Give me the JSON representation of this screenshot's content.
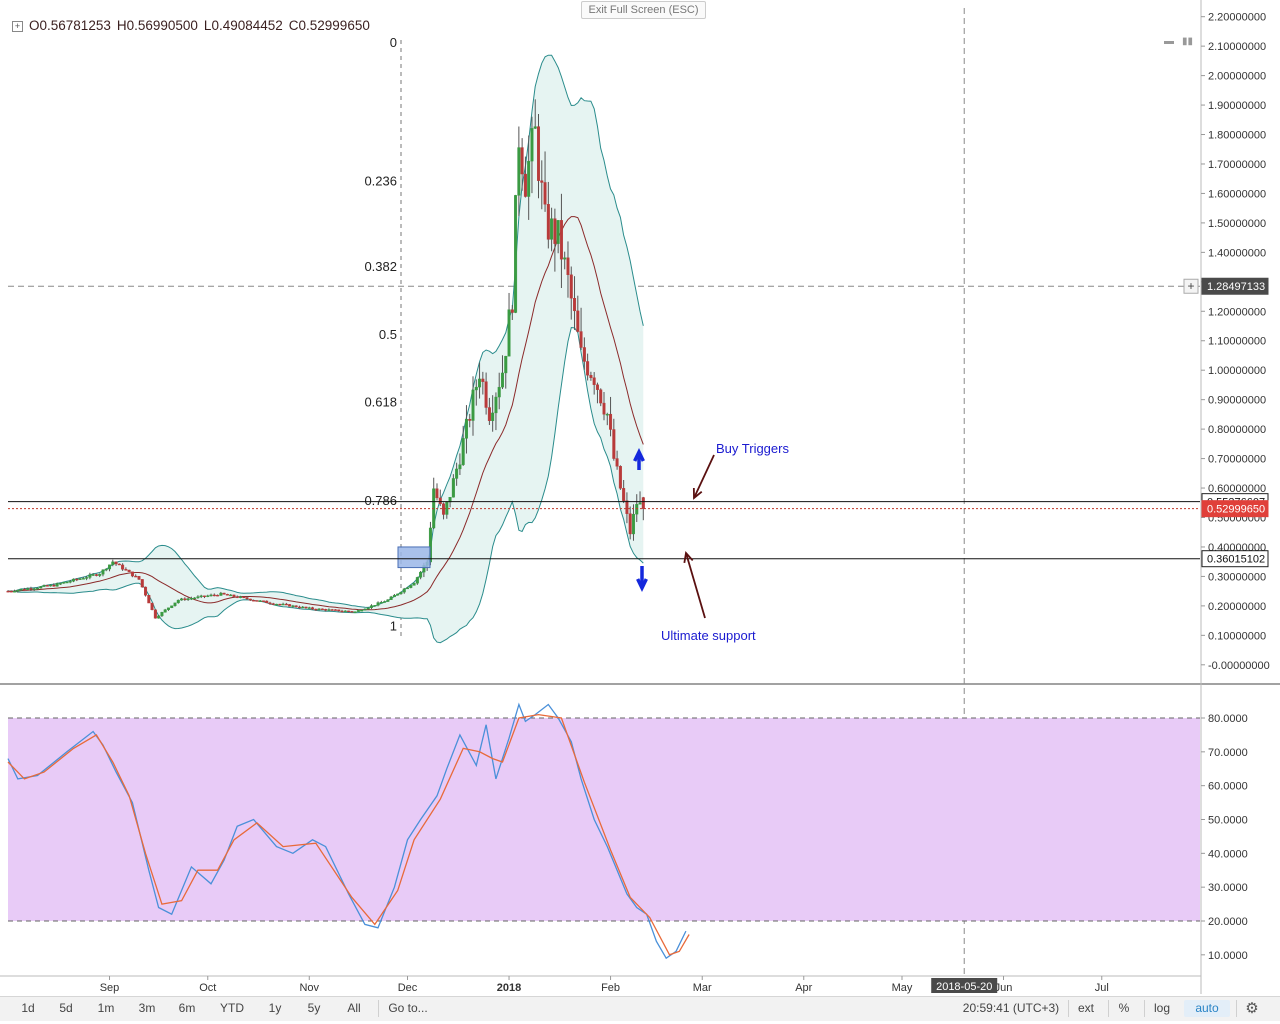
{
  "header": {
    "open_label": "O",
    "open": "0.56781253",
    "high_label": "H",
    "high": "0.56990500",
    "low_label": "L",
    "low": "0.49084452",
    "close_label": "C",
    "close": "0.52999650",
    "exit_fullscreen": "Exit Full Screen (ESC)"
  },
  "price_scale": [
    "2.20000000",
    "2.10000000",
    "2.00000000",
    "1.90000000",
    "1.80000000",
    "1.70000000",
    "1.60000000",
    "1.50000000",
    "1.40000000",
    "1.30000000",
    "1.20000000",
    "1.10000000",
    "1.00000000",
    "0.90000000",
    "0.80000000",
    "0.70000000",
    "0.60000000",
    "0.50000000",
    "0.40000000",
    "0.30000000",
    "0.20000000",
    "0.10000000",
    "-0.00000000"
  ],
  "oscillator_scale": [
    "80.0000",
    "70.0000",
    "60.0000",
    "50.0000",
    "40.0000",
    "30.0000",
    "20.0000",
    "10.0000"
  ],
  "price_tags": [
    {
      "value": 1.28497133,
      "text": "1.28497133",
      "style": "crosshair"
    },
    {
      "value": 0.55376607,
      "text": "0.55376607",
      "style": "line"
    },
    {
      "value": 0.5299965,
      "text": "0.52999650",
      "style": "last"
    },
    {
      "value": 0.36015102,
      "text": "0.36015102",
      "style": "line"
    }
  ],
  "time_axis": [
    "Sep",
    "Oct",
    "Nov",
    "Dec",
    "2018",
    "Feb",
    "Mar",
    "Apr",
    "May",
    "Jun",
    "Jul"
  ],
  "crosshair_date": "2018-05-20",
  "annotations": {
    "buy_triggers": "Buy Triggers",
    "ultimate_support": "Ultimate support"
  },
  "toolbar": {
    "ranges": [
      "1d",
      "5d",
      "1m",
      "3m",
      "6m",
      "YTD",
      "1y",
      "5y",
      "All"
    ],
    "goto": "Go to...",
    "clock": "20:59:41 (UTC+3)",
    "ext": "ext",
    "percent": "%",
    "log": "log",
    "auto": "auto"
  },
  "colors": {
    "up": "#3a9a42",
    "down": "#b83a3a",
    "bollinger": "#2a8c8c",
    "bollinger_fill": "#e6f4f2",
    "basis": "#8b2a2a",
    "stoch_k": "#4a90d9",
    "stoch_d": "#e86a3a",
    "stoch_band": "#e8cbf7",
    "arrow_blue": "#1428dc",
    "arrow_brown": "#5a1010",
    "annotation_text": "#1a1ad0"
  },
  "chart_data": [
    {
      "type": "candlestick",
      "pair_scale": "price",
      "ylim": [
        -0.05,
        2.22
      ],
      "time_range": [
        "2017-08-01",
        "2018-07-31"
      ],
      "last_bar": {
        "open": 0.56781253,
        "high": 0.569905,
        "low": 0.49084452,
        "close": 0.5299965
      },
      "fibonacci": {
        "anchor_top": 2.11,
        "anchor_bottom": 0.13,
        "levels": [
          {
            "ratio": 0,
            "label": "0",
            "price": 2.11
          },
          {
            "ratio": 0.236,
            "label": "0.236",
            "price": 1.64
          },
          {
            "ratio": 0.382,
            "label": "0.382",
            "price": 1.35
          },
          {
            "ratio": 0.5,
            "label": "0.5",
            "price": 1.12
          },
          {
            "ratio": 0.618,
            "label": "0.618",
            "price": 0.89
          },
          {
            "ratio": 0.786,
            "label": "0.786",
            "price": 0.556
          },
          {
            "ratio": 1,
            "label": "1",
            "price": 0.13
          }
        ]
      },
      "horizontal_lines": [
        0.55376607,
        0.36015102
      ],
      "close_path": [
        {
          "date": "2017-08-01",
          "close": 0.25
        },
        {
          "date": "2017-08-15",
          "close": 0.27
        },
        {
          "date": "2017-08-29",
          "close": 0.31
        },
        {
          "date": "2017-09-02",
          "close": 0.35
        },
        {
          "date": "2017-09-10",
          "close": 0.29
        },
        {
          "date": "2017-09-15",
          "close": 0.16
        },
        {
          "date": "2017-09-22",
          "close": 0.22
        },
        {
          "date": "2017-10-05",
          "close": 0.24
        },
        {
          "date": "2017-10-20",
          "close": 0.21
        },
        {
          "date": "2017-11-02",
          "close": 0.19
        },
        {
          "date": "2017-11-15",
          "close": 0.18
        },
        {
          "date": "2017-11-25",
          "close": 0.22
        },
        {
          "date": "2017-12-03",
          "close": 0.28
        },
        {
          "date": "2017-12-07",
          "close": 0.35
        },
        {
          "date": "2017-12-09",
          "close": 0.6
        },
        {
          "date": "2017-12-12",
          "close": 0.5
        },
        {
          "date": "2017-12-15",
          "close": 0.62
        },
        {
          "date": "2017-12-19",
          "close": 0.8
        },
        {
          "date": "2017-12-23",
          "close": 1.0
        },
        {
          "date": "2017-12-26",
          "close": 0.86
        },
        {
          "date": "2017-12-30",
          "close": 1.0
        },
        {
          "date": "2018-01-02",
          "close": 1.25
        },
        {
          "date": "2018-01-04",
          "close": 1.8
        },
        {
          "date": "2018-01-06",
          "close": 1.65
        },
        {
          "date": "2018-01-09",
          "close": 1.8
        },
        {
          "date": "2018-01-12",
          "close": 1.5
        },
        {
          "date": "2018-01-16",
          "close": 1.45
        },
        {
          "date": "2018-01-19",
          "close": 1.3
        },
        {
          "date": "2018-01-23",
          "close": 1.05
        },
        {
          "date": "2018-01-27",
          "close": 0.98
        },
        {
          "date": "2018-01-31",
          "close": 0.85
        },
        {
          "date": "2018-02-02",
          "close": 0.7
        },
        {
          "date": "2018-02-05",
          "close": 0.55
        },
        {
          "date": "2018-02-07",
          "close": 0.45
        },
        {
          "date": "2018-02-09",
          "close": 0.55
        },
        {
          "date": "2018-02-11",
          "close": 0.53
        }
      ]
    },
    {
      "type": "line",
      "pair_scale": "oscillator",
      "ylim": [
        4,
        91
      ],
      "bands": [
        80,
        20
      ],
      "series": [
        {
          "key": "k",
          "points": [
            [
              "2017-08-01",
              68
            ],
            [
              "2017-08-04",
              62
            ],
            [
              "2017-08-10",
              63
            ],
            [
              "2017-08-19",
              70
            ],
            [
              "2017-08-27",
              76
            ],
            [
              "2017-08-30",
              72
            ],
            [
              "2017-09-03",
              64
            ],
            [
              "2017-09-08",
              55
            ],
            [
              "2017-09-13",
              35
            ],
            [
              "2017-09-16",
              24
            ],
            [
              "2017-09-20",
              22
            ],
            [
              "2017-09-26",
              36
            ],
            [
              "2017-10-02",
              31
            ],
            [
              "2017-10-06",
              38
            ],
            [
              "2017-10-10",
              48
            ],
            [
              "2017-10-15",
              50
            ],
            [
              "2017-10-22",
              42
            ],
            [
              "2017-10-27",
              40
            ],
            [
              "2017-11-02",
              44
            ],
            [
              "2017-11-06",
              42
            ],
            [
              "2017-11-13",
              28
            ],
            [
              "2017-11-18",
              19
            ],
            [
              "2017-11-22",
              18
            ],
            [
              "2017-11-27",
              30
            ],
            [
              "2017-12-01",
              44
            ],
            [
              "2017-12-05",
              50
            ],
            [
              "2017-12-10",
              57
            ],
            [
              "2017-12-13",
              65
            ],
            [
              "2017-12-17",
              75
            ],
            [
              "2017-12-22",
              66
            ],
            [
              "2017-12-25",
              78
            ],
            [
              "2017-12-28",
              62
            ],
            [
              "2018-01-01",
              74
            ],
            [
              "2018-01-04",
              84
            ],
            [
              "2018-01-06",
              79
            ],
            [
              "2018-01-09",
              81
            ],
            [
              "2018-01-13",
              84
            ],
            [
              "2018-01-16",
              80
            ],
            [
              "2018-01-20",
              73
            ],
            [
              "2018-01-23",
              62
            ],
            [
              "2018-01-27",
              50
            ],
            [
              "2018-01-31",
              42
            ],
            [
              "2018-02-03",
              35
            ],
            [
              "2018-02-06",
              28
            ],
            [
              "2018-02-09",
              24
            ],
            [
              "2018-02-12",
              22
            ],
            [
              "2018-02-15",
              14
            ],
            [
              "2018-02-18",
              9
            ],
            [
              "2018-02-21",
              11
            ],
            [
              "2018-02-24",
              17
            ]
          ]
        },
        {
          "key": "d",
          "points": [
            [
              "2017-08-01",
              67
            ],
            [
              "2017-08-06",
              62
            ],
            [
              "2017-08-12",
              64
            ],
            [
              "2017-08-21",
              71
            ],
            [
              "2017-08-28",
              75
            ],
            [
              "2017-09-02",
              67
            ],
            [
              "2017-09-07",
              57
            ],
            [
              "2017-09-12",
              40
            ],
            [
              "2017-09-17",
              25
            ],
            [
              "2017-09-23",
              26
            ],
            [
              "2017-09-28",
              35
            ],
            [
              "2017-10-04",
              35
            ],
            [
              "2017-10-09",
              44
            ],
            [
              "2017-10-16",
              49
            ],
            [
              "2017-10-24",
              42
            ],
            [
              "2017-11-03",
              43
            ],
            [
              "2017-11-14",
              27
            ],
            [
              "2017-11-21",
              19
            ],
            [
              "2017-11-28",
              29
            ],
            [
              "2017-12-03",
              44
            ],
            [
              "2017-12-11",
              56
            ],
            [
              "2017-12-18",
              71
            ],
            [
              "2017-12-23",
              70
            ],
            [
              "2017-12-27",
              68
            ],
            [
              "2017-12-30",
              67
            ],
            [
              "2018-01-04",
              80
            ],
            [
              "2018-01-10",
              81
            ],
            [
              "2018-01-17",
              80
            ],
            [
              "2018-01-24",
              61
            ],
            [
              "2018-02-01",
              41
            ],
            [
              "2018-02-07",
              27
            ],
            [
              "2018-02-13",
              21
            ],
            [
              "2018-02-19",
              10
            ],
            [
              "2018-02-22",
              11
            ],
            [
              "2018-02-25",
              16
            ]
          ]
        }
      ]
    }
  ]
}
